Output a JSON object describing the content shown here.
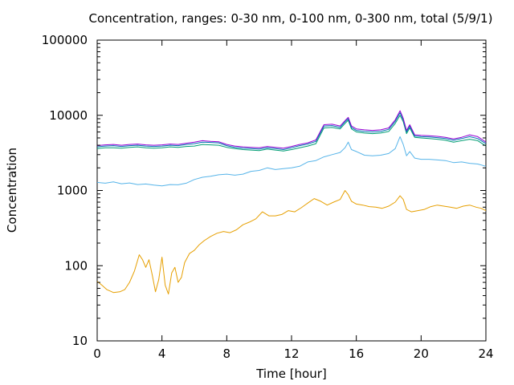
{
  "chart_data": {
    "type": "line",
    "title": "Concentration, ranges: 0-30 nm, 0-100 nm, 0-300 nm, total (5/9/1)",
    "xlabel": "Time [hour]",
    "ylabel": "Concentration",
    "xlim": [
      0,
      24
    ],
    "ylim": [
      10,
      100000
    ],
    "yscale": "log",
    "grid": false,
    "legend": "none",
    "x_ticks": [
      "0",
      "4",
      "8",
      "12",
      "16",
      "20",
      "24"
    ],
    "y_ticks": [
      "10",
      "100",
      "1000",
      "10000",
      "100000"
    ],
    "x_tick_values": [
      0,
      4,
      8,
      12,
      16,
      20,
      24
    ],
    "y_tick_values": [
      10,
      100,
      1000,
      10000,
      100000
    ],
    "series": [
      {
        "color": "#e69f00",
        "x": [
          0,
          0.3,
          0.6,
          1.0,
          1.4,
          1.7,
          2.0,
          2.3,
          2.6,
          2.8,
          3.0,
          3.2,
          3.4,
          3.6,
          3.8,
          4.0,
          4.2,
          4.4,
          4.6,
          4.8,
          5.0,
          5.2,
          5.4,
          5.7,
          6.0,
          6.3,
          6.6,
          7.0,
          7.4,
          7.8,
          8.2,
          8.6,
          9.0,
          9.4,
          9.8,
          10.2,
          10.6,
          11.0,
          11.4,
          11.8,
          12.2,
          12.6,
          13.0,
          13.4,
          13.8,
          14.2,
          14.6,
          15.0,
          15.3,
          15.5,
          15.7,
          16.0,
          16.4,
          16.8,
          17.2,
          17.6,
          18.0,
          18.4,
          18.7,
          18.9,
          19.1,
          19.4,
          19.8,
          20.2,
          20.6,
          21.0,
          21.4,
          21.8,
          22.2,
          22.6,
          23.0,
          23.4,
          23.7,
          24.0
        ],
        "y": [
          62,
          55,
          48,
          44,
          45,
          48,
          60,
          85,
          140,
          120,
          95,
          120,
          75,
          45,
          65,
          130,
          55,
          42,
          80,
          95,
          60,
          70,
          110,
          145,
          160,
          190,
          215,
          245,
          270,
          285,
          275,
          300,
          350,
          380,
          420,
          520,
          460,
          460,
          480,
          540,
          520,
          590,
          680,
          780,
          720,
          640,
          700,
          760,
          1000,
          880,
          720,
          660,
          640,
          610,
          600,
          580,
          620,
          700,
          850,
          760,
          560,
          520,
          540,
          560,
          610,
          640,
          620,
          600,
          580,
          620,
          640,
          600,
          580,
          540
        ]
      },
      {
        "color": "#56b4e9",
        "x": [
          0,
          0.5,
          1.0,
          1.5,
          2.0,
          2.5,
          3.0,
          3.5,
          4.0,
          4.5,
          5.0,
          5.5,
          6.0,
          6.5,
          7.0,
          7.5,
          8.0,
          8.5,
          9.0,
          9.5,
          10.0,
          10.5,
          11.0,
          11.5,
          12.0,
          12.5,
          13.0,
          13.5,
          14.0,
          14.5,
          15.0,
          15.3,
          15.5,
          15.7,
          16.0,
          16.5,
          17.0,
          17.5,
          18.0,
          18.4,
          18.7,
          18.9,
          19.1,
          19.3,
          19.6,
          20.0,
          20.5,
          21.0,
          21.5,
          22.0,
          22.5,
          23.0,
          23.5,
          24.0
        ],
        "y": [
          1280,
          1250,
          1300,
          1230,
          1260,
          1200,
          1220,
          1180,
          1150,
          1200,
          1190,
          1250,
          1400,
          1500,
          1550,
          1620,
          1650,
          1600,
          1650,
          1800,
          1850,
          2000,
          1900,
          1950,
          2000,
          2100,
          2400,
          2500,
          2800,
          3000,
          3200,
          3700,
          4400,
          3500,
          3300,
          2950,
          2900,
          2950,
          3100,
          3600,
          5200,
          4100,
          2900,
          3300,
          2700,
          2600,
          2600,
          2550,
          2500,
          2350,
          2400,
          2300,
          2250,
          2100
        ]
      },
      {
        "color": "#009e73",
        "x": [
          0,
          0.5,
          1.0,
          1.5,
          2.0,
          2.5,
          3.0,
          3.5,
          4.0,
          4.5,
          5.0,
          5.5,
          6.0,
          6.5,
          7.0,
          7.5,
          8.0,
          8.5,
          9.0,
          9.5,
          10.0,
          10.5,
          11.0,
          11.5,
          12.0,
          12.5,
          13.0,
          13.5,
          14.0,
          14.5,
          15.0,
          15.3,
          15.5,
          15.7,
          16.0,
          16.5,
          17.0,
          17.5,
          18.0,
          18.4,
          18.7,
          18.9,
          19.1,
          19.3,
          19.6,
          20.0,
          20.5,
          21.0,
          21.5,
          22.0,
          22.5,
          23.0,
          23.5,
          24.0
        ],
        "y": [
          3600,
          3700,
          3700,
          3650,
          3750,
          3800,
          3700,
          3650,
          3700,
          3800,
          3750,
          3850,
          3900,
          4100,
          4050,
          4000,
          3750,
          3600,
          3500,
          3450,
          3400,
          3550,
          3450,
          3350,
          3500,
          3700,
          3900,
          4200,
          6800,
          6900,
          6600,
          7800,
          8600,
          6600,
          6000,
          5800,
          5700,
          5800,
          6100,
          7800,
          10000,
          8200,
          5700,
          6800,
          5100,
          5000,
          4900,
          4800,
          4650,
          4400,
          4600,
          4800,
          4600,
          3900
        ]
      },
      {
        "color": "#0072b2",
        "x": [
          0,
          0.5,
          1.0,
          1.5,
          2.0,
          2.5,
          3.0,
          3.5,
          4.0,
          4.5,
          5.0,
          5.5,
          6.0,
          6.5,
          7.0,
          7.5,
          8.0,
          8.5,
          9.0,
          9.5,
          10.0,
          10.5,
          11.0,
          11.5,
          12.0,
          12.5,
          13.0,
          13.5,
          14.0,
          14.5,
          15.0,
          15.3,
          15.5,
          15.7,
          16.0,
          16.5,
          17.0,
          17.5,
          18.0,
          18.4,
          18.7,
          18.9,
          19.1,
          19.3,
          19.6,
          20.0,
          20.5,
          21.0,
          21.5,
          22.0,
          22.5,
          23.0,
          23.5,
          24.0
        ],
        "y": [
          3800,
          3900,
          3950,
          3850,
          3950,
          4000,
          3900,
          3850,
          3900,
          4000,
          3950,
          4100,
          4200,
          4400,
          4350,
          4300,
          3950,
          3750,
          3650,
          3600,
          3550,
          3700,
          3600,
          3500,
          3700,
          3950,
          4150,
          4500,
          7200,
          7300,
          6900,
          8200,
          9000,
          6900,
          6300,
          6100,
          6000,
          6100,
          6500,
          8300,
          10800,
          8700,
          6000,
          7200,
          5300,
          5200,
          5150,
          5050,
          4900,
          4650,
          4900,
          5200,
          4900,
          4200
        ]
      },
      {
        "color": "#9400d3",
        "x": [
          0,
          0.5,
          1.0,
          1.5,
          2.0,
          2.5,
          3.0,
          3.5,
          4.0,
          4.5,
          5.0,
          5.5,
          6.0,
          6.5,
          7.0,
          7.5,
          8.0,
          8.5,
          9.0,
          9.5,
          10.0,
          10.5,
          11.0,
          11.5,
          12.0,
          12.5,
          13.0,
          13.5,
          14.0,
          14.5,
          15.0,
          15.3,
          15.5,
          15.7,
          16.0,
          16.5,
          17.0,
          17.5,
          18.0,
          18.4,
          18.7,
          18.9,
          19.1,
          19.3,
          19.6,
          20.0,
          20.5,
          21.0,
          21.5,
          22.0,
          22.5,
          23.0,
          23.5,
          24.0
        ],
        "y": [
          3950,
          4050,
          4100,
          4000,
          4100,
          4150,
          4050,
          4000,
          4050,
          4150,
          4100,
          4250,
          4400,
          4600,
          4500,
          4450,
          4100,
          3900,
          3800,
          3750,
          3700,
          3850,
          3750,
          3650,
          3850,
          4100,
          4300,
          4700,
          7500,
          7600,
          7200,
          8500,
          9400,
          7200,
          6600,
          6400,
          6300,
          6400,
          6800,
          8700,
          11500,
          9100,
          6300,
          7500,
          5500,
          5400,
          5350,
          5250,
          5100,
          4850,
          5100,
          5500,
          5200,
          4400
        ]
      }
    ]
  }
}
